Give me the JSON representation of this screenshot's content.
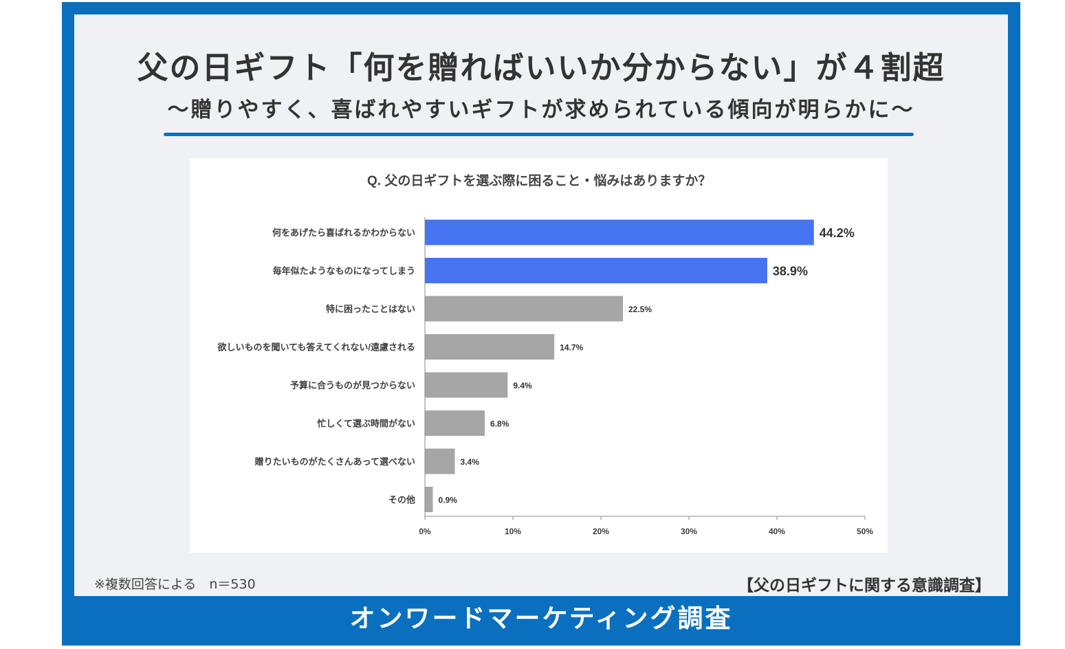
{
  "header": {
    "title": "父の日ギフト「何を贈ればいいか分からない」が４割超",
    "subtitle": "～贈りやすく、喜ばれやすいギフトが求められている傾向が明らかに～"
  },
  "chart_data": {
    "type": "bar",
    "orientation": "horizontal",
    "title": "Q.  父の日ギフトを選ぶ際に困ること・悩みはありますか？",
    "categories": [
      "何をあげたら喜ばれるかわからない",
      "毎年似たようなものになってしまう",
      "特に困ったことはない",
      "欲しいものを聞いても答えてくれない/遠慮される",
      "予算に合うものが見つからない",
      "忙しくて選ぶ時間がない",
      "贈りたいものがたくさんあって選べない",
      "その他"
    ],
    "values": [
      44.2,
      38.9,
      22.5,
      14.7,
      9.4,
      6.8,
      3.4,
      0.9
    ],
    "value_labels": [
      "44.2%",
      "38.9%",
      "22.5%",
      "14.7%",
      "9.4%",
      "6.8%",
      "3.4%",
      "0.9%"
    ],
    "highlighted": [
      true,
      true,
      false,
      false,
      false,
      false,
      false,
      false
    ],
    "xlim": [
      0,
      50
    ],
    "xticks": [
      0,
      10,
      20,
      30,
      40,
      50
    ],
    "xtick_labels": [
      "0%",
      "10%",
      "20%",
      "30%",
      "40%",
      "50%"
    ],
    "grid": false,
    "colors": {
      "highlight": "#4673ef",
      "default": "#a6a6a6"
    }
  },
  "footnote": {
    "note": "※複数回答による　n＝530",
    "survey": "【父の日ギフトに関する意識調査】"
  },
  "footer": {
    "label": "オンワードマーケティング調査"
  },
  "colors": {
    "frame": "#0a6fbe",
    "panel": "#eff1f5",
    "text": "#333333"
  }
}
